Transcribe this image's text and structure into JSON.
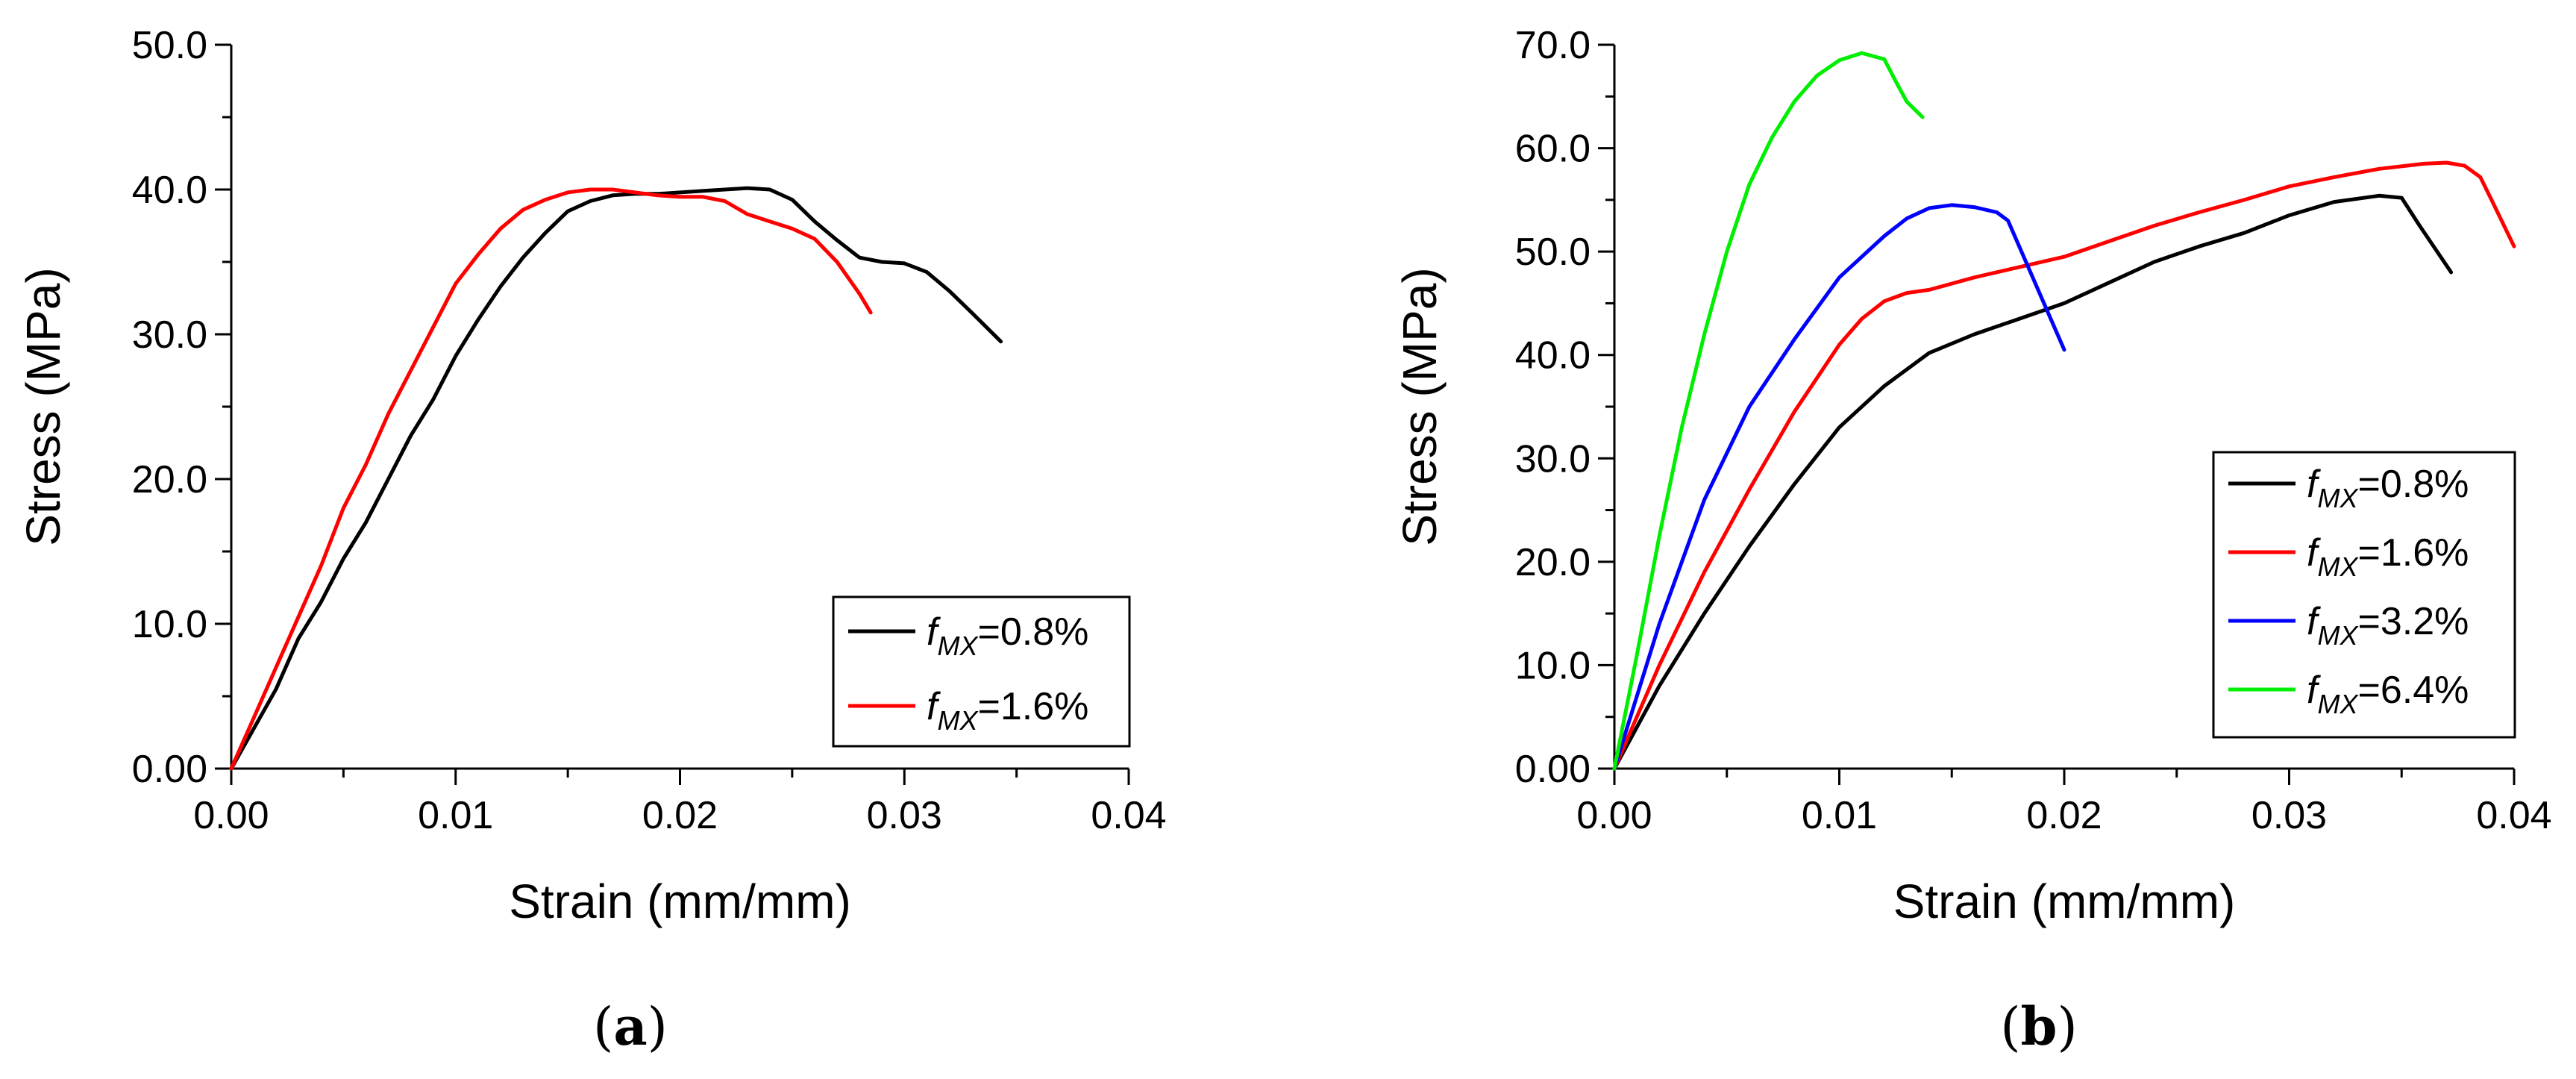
{
  "chart_data": [
    {
      "type": "line",
      "panel_label": "(a)",
      "panel_letter": "a",
      "xlabel": "Strain (mm/mm)",
      "ylabel": "Stress (MPa)",
      "xlim": [
        0,
        0.04
      ],
      "ylim": [
        0,
        50
      ],
      "x_ticks": [
        "0.00",
        "0.01",
        "0.02",
        "0.03",
        "0.04"
      ],
      "y_ticks": [
        "0.00",
        "10.0",
        "20.0",
        "30.0",
        "40.0",
        "50.0"
      ],
      "legend_position": "bottom-right",
      "series": [
        {
          "name": "fMX=0.8%",
          "legend_prefix": "f",
          "legend_sub": "MX",
          "legend_suffix": "=0.8%",
          "color": "#000000",
          "x": [
            0,
            0.002,
            0.003,
            0.004,
            0.005,
            0.006,
            0.007,
            0.008,
            0.009,
            0.01,
            0.011,
            0.012,
            0.013,
            0.014,
            0.015,
            0.016,
            0.017,
            0.018,
            0.019,
            0.02,
            0.021,
            0.022,
            0.023,
            0.024,
            0.025,
            0.026,
            0.027,
            0.028,
            0.029,
            0.03,
            0.031,
            0.032,
            0.033,
            0.0343
          ],
          "y": [
            0,
            5.5,
            9,
            11.5,
            14.5,
            17,
            20,
            23,
            25.5,
            28.5,
            31,
            33.3,
            35.3,
            37,
            38.5,
            39.2,
            39.6,
            39.7,
            39.7,
            39.8,
            39.9,
            40.0,
            40.1,
            40.0,
            39.3,
            37.8,
            36.5,
            35.3,
            35.0,
            34.9,
            34.3,
            33.0,
            31.5,
            29.5
          ]
        },
        {
          "name": "fMX=1.6%",
          "legend_prefix": "f",
          "legend_sub": "MX",
          "legend_suffix": "=1.6%",
          "color": "#ff0000",
          "x": [
            0,
            0.001,
            0.002,
            0.003,
            0.004,
            0.005,
            0.006,
            0.007,
            0.008,
            0.009,
            0.01,
            0.011,
            0.012,
            0.013,
            0.014,
            0.015,
            0.016,
            0.017,
            0.018,
            0.019,
            0.02,
            0.021,
            0.022,
            0.023,
            0.024,
            0.025,
            0.026,
            0.027,
            0.028,
            0.0285
          ],
          "y": [
            0,
            3.5,
            7,
            10.5,
            14,
            18,
            21,
            24.5,
            27.5,
            30.5,
            33.5,
            35.5,
            37.3,
            38.6,
            39.3,
            39.8,
            40.0,
            40.0,
            39.8,
            39.6,
            39.5,
            39.5,
            39.2,
            38.3,
            37.8,
            37.3,
            36.6,
            35.0,
            32.8,
            31.5
          ]
        }
      ]
    },
    {
      "type": "line",
      "panel_label": "(b)",
      "panel_letter": "b",
      "xlabel": "Strain (mm/mm)",
      "ylabel": "Stress (MPa)",
      "xlim": [
        0,
        0.04
      ],
      "ylim": [
        0,
        70
      ],
      "x_ticks": [
        "0.00",
        "0.01",
        "0.02",
        "0.03",
        "0.04"
      ],
      "y_ticks": [
        "0.00",
        "10.0",
        "20.0",
        "30.0",
        "40.0",
        "50.0",
        "60.0",
        "70.0"
      ],
      "legend_position": "bottom-right",
      "series": [
        {
          "name": "fMX=0.8%",
          "legend_prefix": "f",
          "legend_sub": "MX",
          "legend_suffix": "=0.8%",
          "color": "#000000",
          "x": [
            0,
            0.002,
            0.004,
            0.006,
            0.008,
            0.01,
            0.012,
            0.014,
            0.016,
            0.018,
            0.02,
            0.022,
            0.024,
            0.026,
            0.028,
            0.03,
            0.032,
            0.034,
            0.035,
            0.0358,
            0.0372
          ],
          "y": [
            0,
            8,
            15,
            21.5,
            27.5,
            33,
            37,
            40.2,
            42,
            43.5,
            45,
            47,
            49,
            50.5,
            51.8,
            53.5,
            54.8,
            55.4,
            55.2,
            52.5,
            48
          ]
        },
        {
          "name": "fMX=1.6%",
          "legend_prefix": "f",
          "legend_sub": "MX",
          "legend_suffix": "=1.6%",
          "color": "#ff0000",
          "x": [
            0,
            0.002,
            0.004,
            0.006,
            0.008,
            0.01,
            0.011,
            0.012,
            0.013,
            0.014,
            0.016,
            0.018,
            0.02,
            0.022,
            0.024,
            0.026,
            0.028,
            0.03,
            0.032,
            0.034,
            0.036,
            0.037,
            0.0378,
            0.0385,
            0.039,
            0.04
          ],
          "y": [
            0,
            10,
            19,
            27,
            34.5,
            41,
            43.5,
            45.2,
            46,
            46.3,
            47.5,
            48.5,
            49.5,
            51,
            52.5,
            53.8,
            55,
            56.3,
            57.2,
            58,
            58.5,
            58.6,
            58.3,
            57.2,
            55,
            50.5
          ]
        },
        {
          "name": "fMX=3.2%",
          "legend_prefix": "f",
          "legend_sub": "MX",
          "legend_suffix": "=3.2%",
          "color": "#0000ff",
          "x": [
            0,
            0.002,
            0.004,
            0.006,
            0.008,
            0.01,
            0.012,
            0.013,
            0.014,
            0.015,
            0.016,
            0.017,
            0.0175,
            0.018,
            0.019,
            0.02
          ],
          "y": [
            0,
            14,
            26,
            35,
            41.5,
            47.5,
            51.5,
            53.2,
            54.2,
            54.5,
            54.3,
            53.8,
            53.0,
            50.5,
            45.5,
            40.5
          ]
        },
        {
          "name": "fMX=6.4%",
          "legend_prefix": "f",
          "legend_sub": "MX",
          "legend_suffix": "=6.4%",
          "color": "#00ee00",
          "x": [
            0,
            0.001,
            0.002,
            0.003,
            0.004,
            0.005,
            0.006,
            0.007,
            0.008,
            0.009,
            0.01,
            0.011,
            0.012,
            0.0125,
            0.013,
            0.0137
          ],
          "y": [
            0,
            11,
            22.5,
            33,
            42,
            50,
            56.5,
            61,
            64.5,
            67,
            68.5,
            69.2,
            68.6,
            66.5,
            64.5,
            63
          ]
        }
      ]
    }
  ]
}
